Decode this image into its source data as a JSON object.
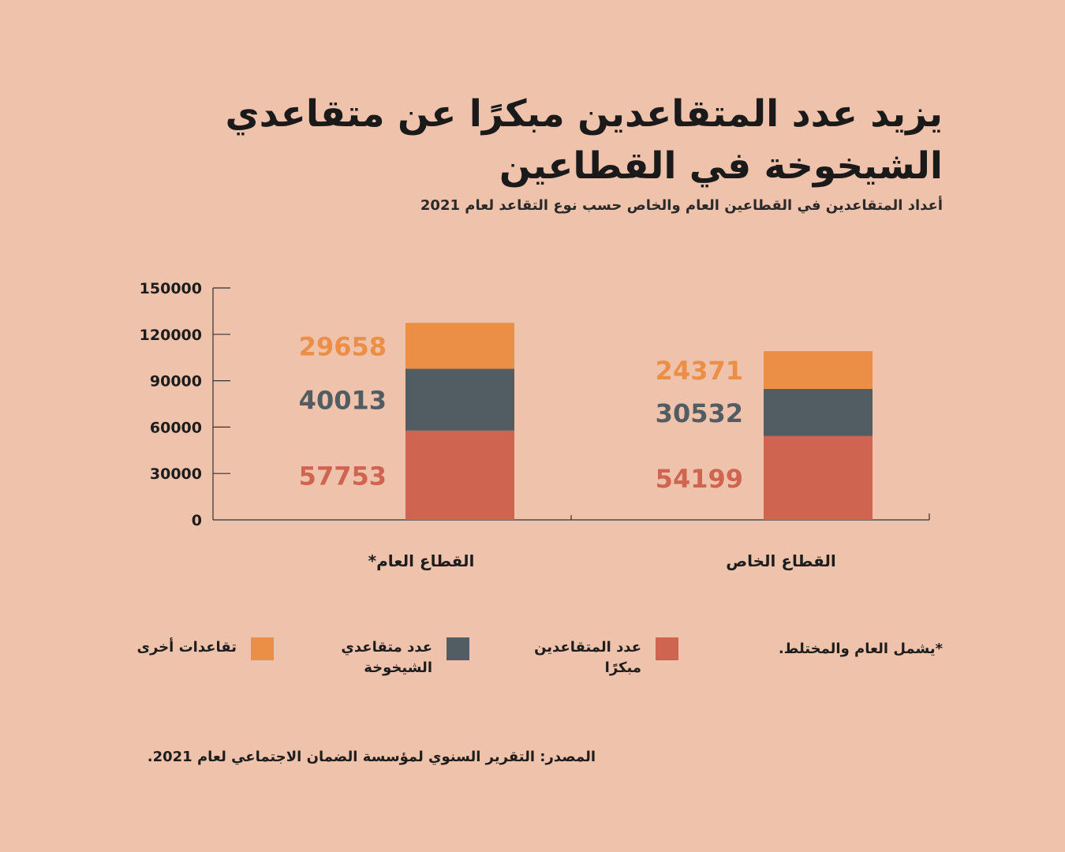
{
  "title": "يزيد عدد المتقاعدين مبكرًا عن متقاعدي الشيخوخة في القطاعين",
  "subtitle": "أعداد المتقاعدين في القطاعين العام والخاص حسب نوع التقاعد لعام 2021",
  "note": "*يشمل العام والمختلط.",
  "source": "المصدر: التقرير السنوي لمؤسسة الضمان الاجتماعي لعام 2021.",
  "legend": [
    {
      "label": "عدد المتقاعدين مبكرًا",
      "color": "#cf6450"
    },
    {
      "label": "عدد متقاعدي الشيخوخة",
      "color": "#515c63"
    },
    {
      "label": "تقاعدات أخرى",
      "color": "#ec8f46"
    }
  ],
  "chart_data": {
    "type": "bar",
    "stacked": true,
    "categories": [
      "القطاع العام*",
      "القطاع الخاص"
    ],
    "series": [
      {
        "name": "عدد المتقاعدين مبكرًا",
        "values": [
          57753,
          54199
        ],
        "color": "#cf6450"
      },
      {
        "name": "عدد متقاعدي الشيخوخة",
        "values": [
          40013,
          30532
        ],
        "color": "#515c63"
      },
      {
        "name": "تقاعدات أخرى",
        "values": [
          29658,
          24371
        ],
        "color": "#ec8f46"
      }
    ],
    "ylim": [
      0,
      150000
    ],
    "yticks": [
      0,
      30000,
      60000,
      90000,
      120000,
      150000
    ],
    "xlabel": "",
    "ylabel": "",
    "grid": false,
    "legend_position": "bottom"
  }
}
